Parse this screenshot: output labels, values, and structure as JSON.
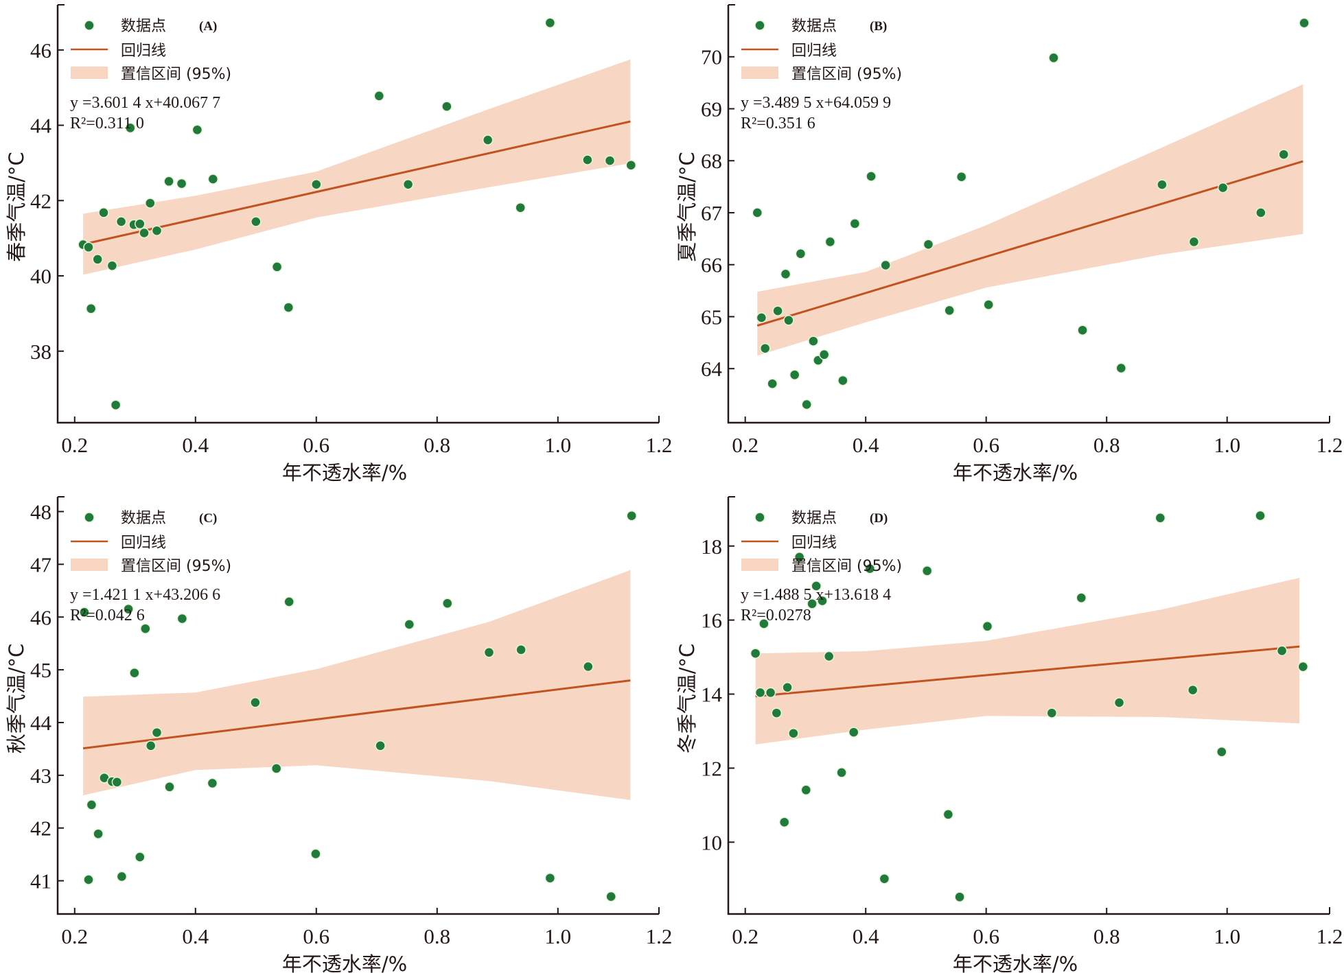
{
  "colors": {
    "point": "#1f7a3c",
    "regression": "#c2521f",
    "band": "#f7d5c1",
    "axis": "#231815"
  },
  "chart_data": [
    {
      "type": "scatter",
      "panel": "(A)",
      "title": "",
      "xlabel": "年不透水率/%",
      "ylabel": "春季气温/°C",
      "xlim": [
        0.17,
        1.17
      ],
      "ylim": [
        36.1,
        47.2
      ],
      "xticks": [
        0.2,
        0.4,
        0.6,
        0.8,
        1.0,
        1.2
      ],
      "xtick_labels": [
        "0.2",
        "0.4",
        "0.6",
        "0.8",
        "1.0",
        "1.2"
      ],
      "yticks": [
        38,
        40,
        42,
        44,
        46
      ],
      "ytick_labels": [
        "38",
        "40",
        "42",
        "44",
        "46"
      ],
      "grid": false,
      "legend_position": "top-left",
      "legend": [
        {
          "label": "数据点",
          "kind": "marker"
        },
        {
          "label": "回归线",
          "kind": "line"
        },
        {
          "label": "置信区间 (95%)",
          "kind": "band"
        }
      ],
      "equation": "y =3.601 4 x+40.067 7",
      "r_squared": "R²=0.311 0",
      "regression": {
        "slope": 3.6014,
        "intercept": 40.0677,
        "x_range": [
          0.214,
          1.12
        ]
      },
      "confidence_band": [
        {
          "x": 0.214,
          "lower": 40.03,
          "upper": 41.65
        },
        {
          "x": 0.4,
          "lower": 40.7,
          "upper": 42.13
        },
        {
          "x": 0.6,
          "lower": 41.55,
          "upper": 42.77
        },
        {
          "x": 0.884,
          "lower": 42.35,
          "upper": 44.42
        },
        {
          "x": 1.12,
          "lower": 42.99,
          "upper": 45.75
        }
      ],
      "points": [
        {
          "x": 0.214,
          "y": 40.83
        },
        {
          "x": 0.223,
          "y": 40.76
        },
        {
          "x": 0.227,
          "y": 39.13
        },
        {
          "x": 0.238,
          "y": 40.44
        },
        {
          "x": 0.248,
          "y": 41.68
        },
        {
          "x": 0.262,
          "y": 40.27
        },
        {
          "x": 0.268,
          "y": 36.57
        },
        {
          "x": 0.277,
          "y": 41.44
        },
        {
          "x": 0.292,
          "y": 43.93
        },
        {
          "x": 0.298,
          "y": 41.36
        },
        {
          "x": 0.308,
          "y": 41.38
        },
        {
          "x": 0.315,
          "y": 41.14
        },
        {
          "x": 0.325,
          "y": 41.93
        },
        {
          "x": 0.336,
          "y": 41.2
        },
        {
          "x": 0.356,
          "y": 42.51
        },
        {
          "x": 0.377,
          "y": 42.45
        },
        {
          "x": 0.403,
          "y": 43.88
        },
        {
          "x": 0.429,
          "y": 42.57
        },
        {
          "x": 0.5,
          "y": 41.44
        },
        {
          "x": 0.535,
          "y": 40.24
        },
        {
          "x": 0.554,
          "y": 39.16
        },
        {
          "x": 0.6,
          "y": 42.43
        },
        {
          "x": 0.704,
          "y": 44.78
        },
        {
          "x": 0.752,
          "y": 42.43
        },
        {
          "x": 0.816,
          "y": 44.5
        },
        {
          "x": 0.884,
          "y": 43.61
        },
        {
          "x": 0.938,
          "y": 41.81
        },
        {
          "x": 0.987,
          "y": 46.72
        },
        {
          "x": 1.049,
          "y": 43.08
        },
        {
          "x": 1.086,
          "y": 43.06
        },
        {
          "x": 1.121,
          "y": 42.94
        }
      ]
    },
    {
      "type": "scatter",
      "panel": "(B)",
      "title": "",
      "xlabel": "年不透水率/%",
      "ylabel": "夏季气温/°C",
      "xlim": [
        0.17,
        1.17
      ],
      "ylim": [
        62.96,
        71.0
      ],
      "xticks": [
        0.2,
        0.4,
        0.6,
        0.8,
        1.0,
        1.2
      ],
      "xtick_labels": [
        "0.2",
        "0.4",
        "0.6",
        "0.8",
        "1.0",
        "1.2"
      ],
      "yticks": [
        64,
        65,
        66,
        67,
        68,
        69,
        70
      ],
      "ytick_labels": [
        "64",
        "65",
        "66",
        "67",
        "68",
        "69",
        "70"
      ],
      "grid": false,
      "legend_position": "top-left",
      "legend": [
        {
          "label": "数据点",
          "kind": "marker"
        },
        {
          "label": "回归线",
          "kind": "line"
        },
        {
          "label": "置信区间 (95%)",
          "kind": "band"
        }
      ],
      "equation": "y =3.489 5 x+64.059 9",
      "r_squared": "R²=0.351 6",
      "regression": {
        "slope": 3.4895,
        "intercept": 64.0599,
        "x_range": [
          0.22,
          1.126
        ]
      },
      "confidence_band": [
        {
          "x": 0.22,
          "lower": 64.25,
          "upper": 65.48
        },
        {
          "x": 0.4,
          "lower": 64.89,
          "upper": 65.86
        },
        {
          "x": 0.6,
          "lower": 65.56,
          "upper": 66.76
        },
        {
          "x": 0.889,
          "lower": 66.19,
          "upper": 68.24
        },
        {
          "x": 1.126,
          "lower": 66.59,
          "upper": 69.47
        }
      ],
      "points": [
        {
          "x": 0.22,
          "y": 67.0
        },
        {
          "x": 0.227,
          "y": 64.98
        },
        {
          "x": 0.233,
          "y": 64.39
        },
        {
          "x": 0.245,
          "y": 63.71
        },
        {
          "x": 0.254,
          "y": 65.11
        },
        {
          "x": 0.267,
          "y": 65.82
        },
        {
          "x": 0.272,
          "y": 64.93
        },
        {
          "x": 0.282,
          "y": 63.88
        },
        {
          "x": 0.292,
          "y": 66.21
        },
        {
          "x": 0.302,
          "y": 63.31
        },
        {
          "x": 0.313,
          "y": 64.53
        },
        {
          "x": 0.321,
          "y": 64.16
        },
        {
          "x": 0.331,
          "y": 64.27
        },
        {
          "x": 0.341,
          "y": 66.44
        },
        {
          "x": 0.362,
          "y": 63.77
        },
        {
          "x": 0.382,
          "y": 66.79
        },
        {
          "x": 0.409,
          "y": 67.7
        },
        {
          "x": 0.433,
          "y": 65.99
        },
        {
          "x": 0.504,
          "y": 66.39
        },
        {
          "x": 0.539,
          "y": 65.12
        },
        {
          "x": 0.559,
          "y": 67.69
        },
        {
          "x": 0.604,
          "y": 65.23
        },
        {
          "x": 0.712,
          "y": 69.98
        },
        {
          "x": 0.76,
          "y": 64.74
        },
        {
          "x": 0.824,
          "y": 64.01
        },
        {
          "x": 0.892,
          "y": 67.54
        },
        {
          "x": 0.945,
          "y": 66.44
        },
        {
          "x": 0.993,
          "y": 67.48
        },
        {
          "x": 1.056,
          "y": 67.0
        },
        {
          "x": 1.094,
          "y": 68.12
        },
        {
          "x": 1.128,
          "y": 70.65
        }
      ]
    },
    {
      "type": "scatter",
      "panel": "(C)",
      "title": "",
      "xlabel": "年不透水率/%",
      "ylabel": "秋季气温/°C",
      "xlim": [
        0.17,
        1.17
      ],
      "ylim": [
        40.37,
        48.28
      ],
      "xticks": [
        0.2,
        0.4,
        0.6,
        0.8,
        1.0,
        1.2
      ],
      "xtick_labels": [
        "0.2",
        "0.4",
        "0.6",
        "0.8",
        "1.0",
        "1.2"
      ],
      "yticks": [
        41,
        42,
        43,
        44,
        45,
        46,
        47,
        48
      ],
      "ytick_labels": [
        "41",
        "42",
        "43",
        "44",
        "45",
        "46",
        "47",
        "48"
      ],
      "grid": false,
      "legend_position": "top-left",
      "legend": [
        {
          "label": "数据点",
          "kind": "marker"
        },
        {
          "label": "回归线",
          "kind": "line"
        },
        {
          "label": "置信区间 (95%)",
          "kind": "band"
        }
      ],
      "equation": "y =1.421 1 x+43.206 6",
      "r_squared": "R²=0.042 6",
      "regression": {
        "slope": 1.4211,
        "intercept": 43.2066,
        "x_range": [
          0.214,
          1.12
        ]
      },
      "confidence_band": [
        {
          "x": 0.214,
          "lower": 42.62,
          "upper": 44.49
        },
        {
          "x": 0.4,
          "lower": 43.1,
          "upper": 44.57
        },
        {
          "x": 0.6,
          "lower": 43.19,
          "upper": 45.01
        },
        {
          "x": 0.886,
          "lower": 42.89,
          "upper": 45.91
        },
        {
          "x": 1.12,
          "lower": 42.53,
          "upper": 46.89
        }
      ],
      "points": [
        {
          "x": 0.216,
          "y": 46.09
        },
        {
          "x": 0.223,
          "y": 41.02
        },
        {
          "x": 0.228,
          "y": 42.44
        },
        {
          "x": 0.239,
          "y": 41.89
        },
        {
          "x": 0.249,
          "y": 42.95
        },
        {
          "x": 0.262,
          "y": 42.88
        },
        {
          "x": 0.27,
          "y": 42.87
        },
        {
          "x": 0.278,
          "y": 41.08
        },
        {
          "x": 0.289,
          "y": 46.15
        },
        {
          "x": 0.299,
          "y": 44.94
        },
        {
          "x": 0.308,
          "y": 41.45
        },
        {
          "x": 0.317,
          "y": 45.78
        },
        {
          "x": 0.326,
          "y": 43.56
        },
        {
          "x": 0.336,
          "y": 43.81
        },
        {
          "x": 0.357,
          "y": 42.78
        },
        {
          "x": 0.378,
          "y": 45.97
        },
        {
          "x": 0.428,
          "y": 42.85
        },
        {
          "x": 0.499,
          "y": 44.38
        },
        {
          "x": 0.534,
          "y": 43.13
        },
        {
          "x": 0.555,
          "y": 46.29
        },
        {
          "x": 0.599,
          "y": 41.51
        },
        {
          "x": 0.706,
          "y": 43.56
        },
        {
          "x": 0.754,
          "y": 45.86
        },
        {
          "x": 0.817,
          "y": 46.26
        },
        {
          "x": 0.886,
          "y": 45.33
        },
        {
          "x": 0.939,
          "y": 45.38
        },
        {
          "x": 0.987,
          "y": 41.05
        },
        {
          "x": 1.05,
          "y": 45.06
        },
        {
          "x": 1.088,
          "y": 40.7
        },
        {
          "x": 1.122,
          "y": 47.92
        }
      ]
    },
    {
      "type": "scatter",
      "panel": "(D)",
      "title": "",
      "xlabel": "年不透水率/%",
      "ylabel": "冬季气温/°C",
      "xlim": [
        0.17,
        1.17
      ],
      "ylim": [
        8.06,
        19.33
      ],
      "xticks": [
        0.2,
        0.4,
        0.6,
        0.8,
        1.0,
        1.2
      ],
      "xtick_labels": [
        "0.2",
        "0.4",
        "0.6",
        "0.8",
        "1.0",
        "1.2"
      ],
      "yticks": [
        10,
        12,
        14,
        16,
        18
      ],
      "ytick_labels": [
        "10",
        "12",
        "14",
        "16",
        "18"
      ],
      "grid": false,
      "legend_position": "top-left",
      "legend": [
        {
          "label": "数据点",
          "kind": "marker"
        },
        {
          "label": "回归线",
          "kind": "line"
        },
        {
          "label": "置信区间 (95%)",
          "kind": "band"
        }
      ],
      "equation": "y =1.488 5 x+13.618 4",
      "r_squared": "R²=0.0278",
      "regression": {
        "slope": 1.4885,
        "intercept": 13.6184,
        "x_range": [
          0.217,
          1.12
        ]
      },
      "confidence_band": [
        {
          "x": 0.217,
          "lower": 12.64,
          "upper": 15.1
        },
        {
          "x": 0.4,
          "lower": 13.04,
          "upper": 15.16
        },
        {
          "x": 0.6,
          "lower": 13.41,
          "upper": 15.44
        },
        {
          "x": 0.89,
          "lower": 13.38,
          "upper": 16.28
        },
        {
          "x": 1.12,
          "lower": 13.21,
          "upper": 17.14
        }
      ],
      "points": [
        {
          "x": 0.217,
          "y": 15.1
        },
        {
          "x": 0.225,
          "y": 14.04
        },
        {
          "x": 0.231,
          "y": 15.9
        },
        {
          "x": 0.242,
          "y": 14.04
        },
        {
          "x": 0.252,
          "y": 13.49
        },
        {
          "x": 0.265,
          "y": 10.54
        },
        {
          "x": 0.27,
          "y": 14.18
        },
        {
          "x": 0.28,
          "y": 12.94
        },
        {
          "x": 0.29,
          "y": 17.7
        },
        {
          "x": 0.301,
          "y": 11.41
        },
        {
          "x": 0.311,
          "y": 16.44
        },
        {
          "x": 0.318,
          "y": 16.92
        },
        {
          "x": 0.328,
          "y": 16.52
        },
        {
          "x": 0.339,
          "y": 15.02
        },
        {
          "x": 0.36,
          "y": 11.88
        },
        {
          "x": 0.38,
          "y": 12.97
        },
        {
          "x": 0.407,
          "y": 17.39
        },
        {
          "x": 0.431,
          "y": 9.01
        },
        {
          "x": 0.502,
          "y": 17.33
        },
        {
          "x": 0.537,
          "y": 10.75
        },
        {
          "x": 0.556,
          "y": 8.52
        },
        {
          "x": 0.602,
          "y": 15.83
        },
        {
          "x": 0.709,
          "y": 13.49
        },
        {
          "x": 0.758,
          "y": 16.6
        },
        {
          "x": 0.821,
          "y": 13.77
        },
        {
          "x": 0.889,
          "y": 18.76
        },
        {
          "x": 0.943,
          "y": 14.11
        },
        {
          "x": 0.991,
          "y": 12.44
        },
        {
          "x": 1.055,
          "y": 18.82
        },
        {
          "x": 1.091,
          "y": 15.17
        },
        {
          "x": 1.126,
          "y": 14.74
        }
      ]
    }
  ]
}
